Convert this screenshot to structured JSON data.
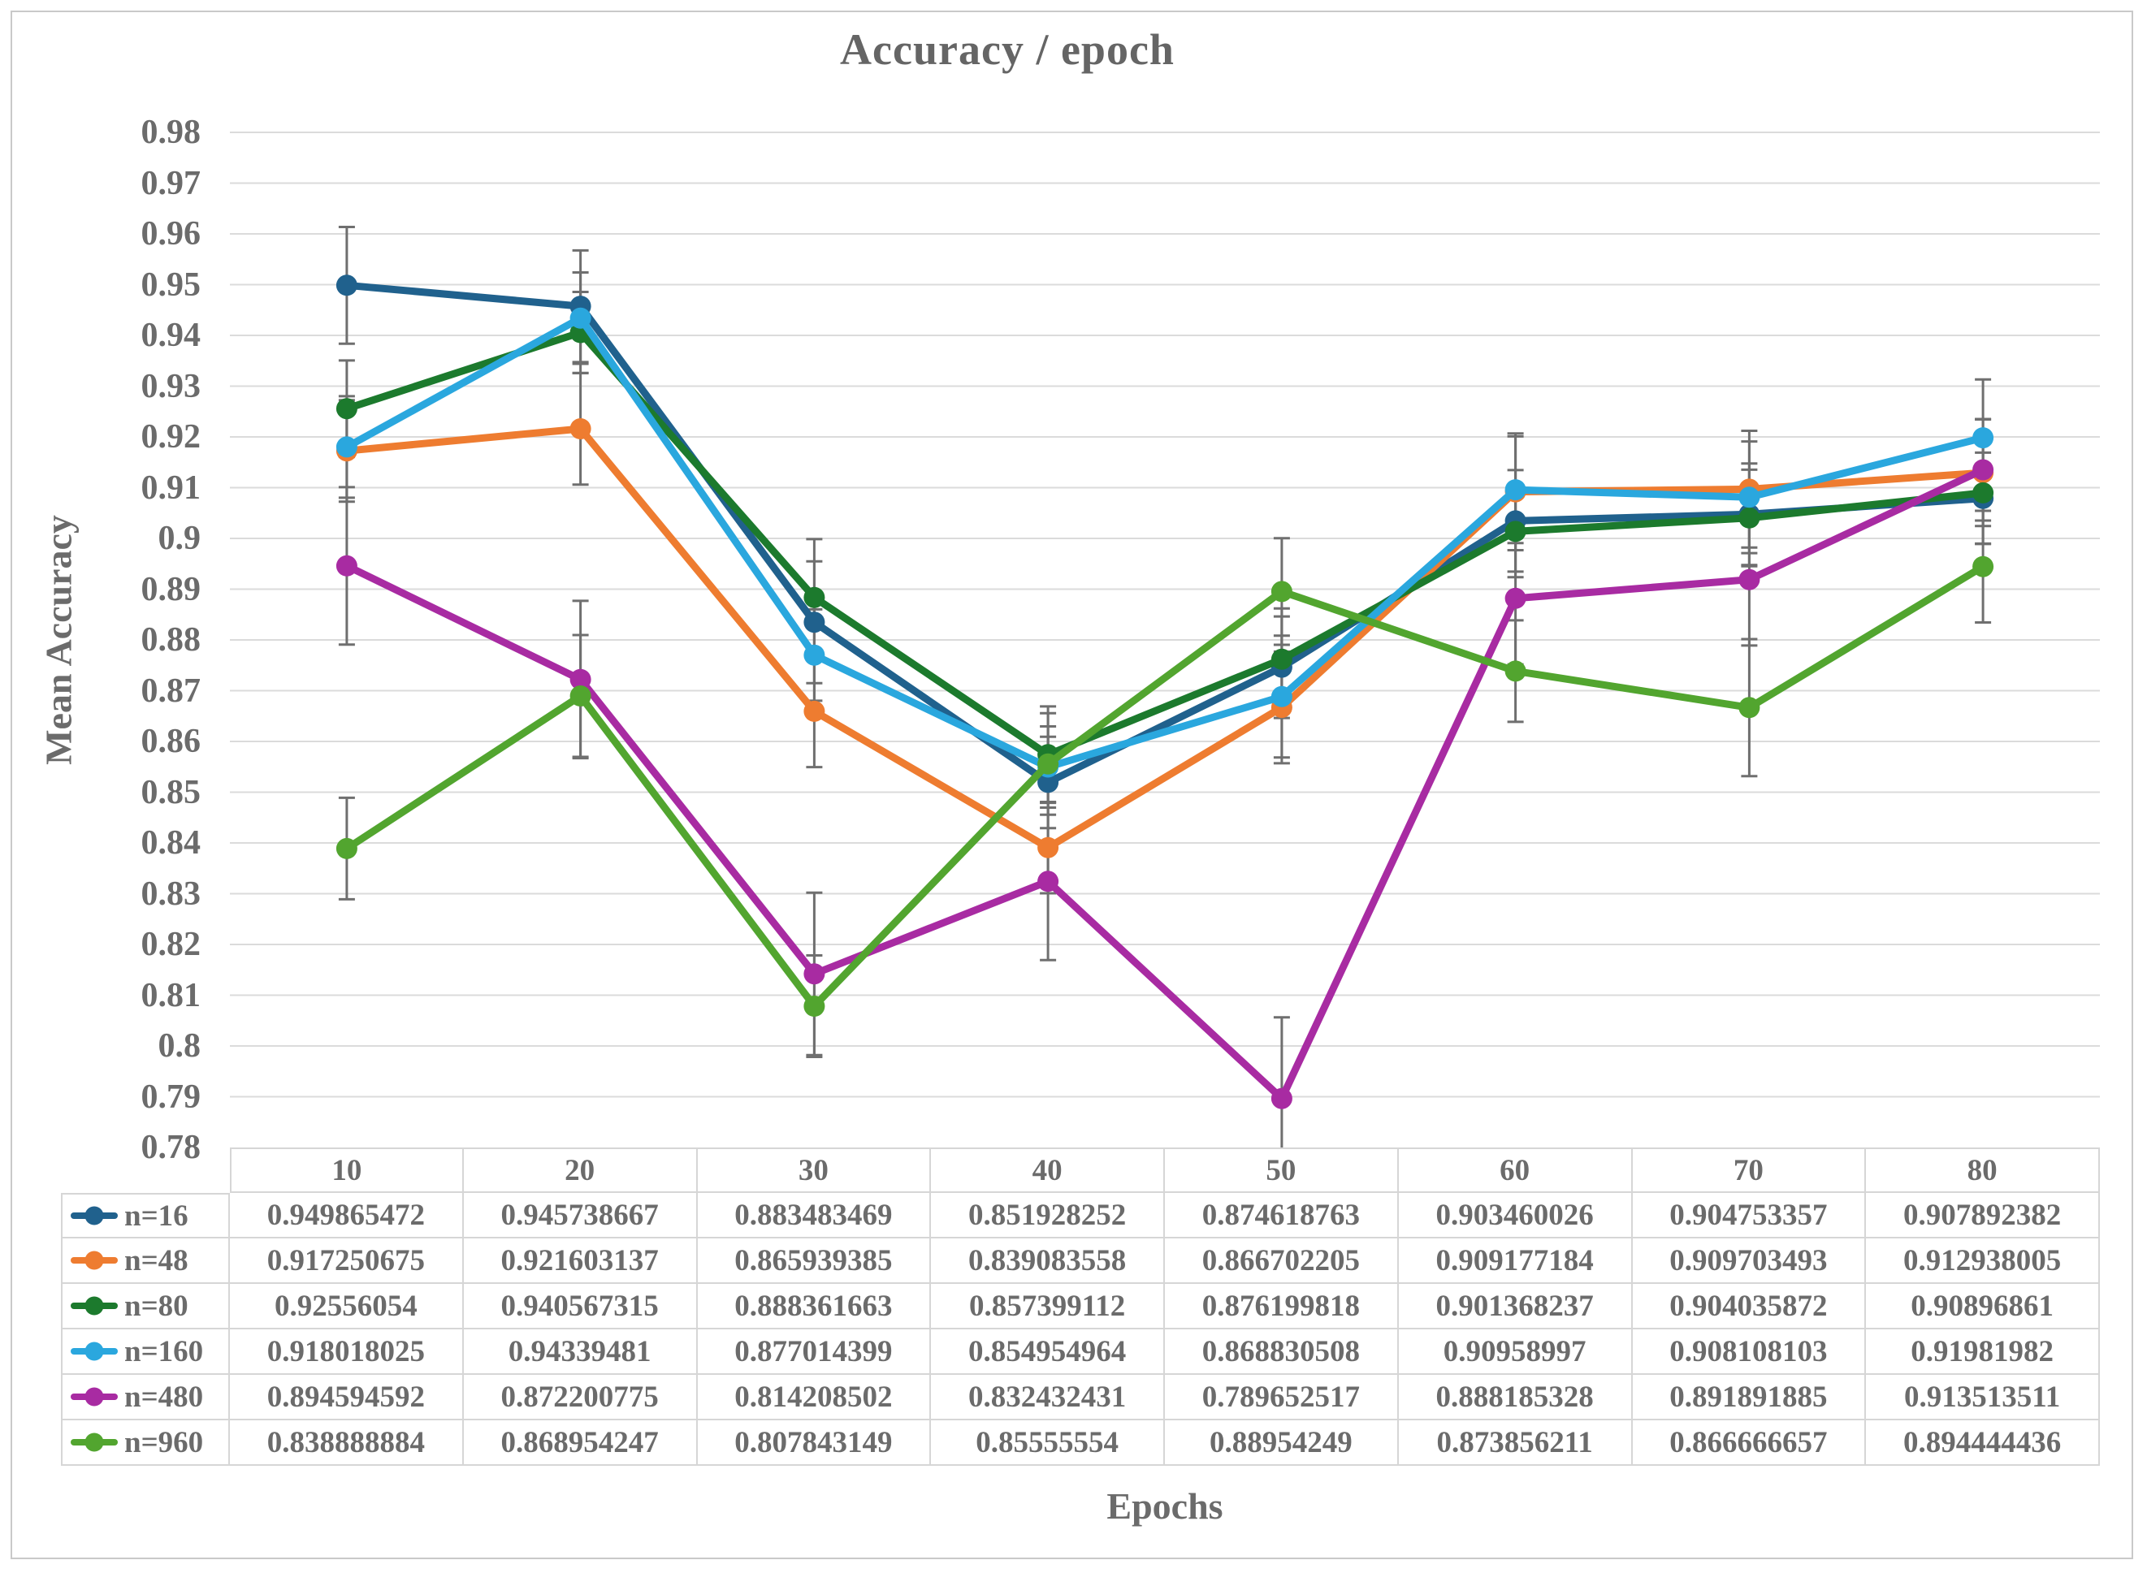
{
  "page": {
    "background": "#FFFFFF",
    "border_color": "#C9C9C9"
  },
  "chart_data": {
    "type": "line",
    "title": "Accuracy / epoch",
    "xlabel": "Epochs",
    "ylabel": "Mean Accuracy",
    "categories": [
      "10",
      "20",
      "30",
      "40",
      "50",
      "60",
      "70",
      "80"
    ],
    "y_axis": {
      "min": 0.78,
      "max": 0.98,
      "step": 0.01,
      "tick_labels": [
        "0.98",
        "0.97",
        "0.96",
        "0.95",
        "0.94",
        "0.93",
        "0.92",
        "0.91",
        "0.9",
        "0.89",
        "0.88",
        "0.87",
        "0.86",
        "0.85",
        "0.84",
        "0.83",
        "0.82",
        "0.81",
        "0.8",
        "0.79",
        "0.78"
      ]
    },
    "grid": true,
    "has_error_bars": true,
    "legend_position": "table-left",
    "colors": {
      "grid": "#DBDBDB",
      "error_bar": "#6F6F6F",
      "text": "#6B6B6B",
      "table_border": "#D6D6D6"
    },
    "series": [
      {
        "name": "n=16",
        "color": "#20618D",
        "values": [
          0.949865472,
          0.945738667,
          0.883483469,
          0.851928252,
          0.874618763,
          0.903460026,
          0.904753357,
          0.907892382
        ],
        "errors": [
          0.0115,
          0.011,
          0.012,
          0.009,
          0.01,
          0.01,
          0.01,
          0.009
        ]
      },
      {
        "name": "n=48",
        "color": "#EE7C30",
        "values": [
          0.917250675,
          0.921603137,
          0.865939385,
          0.839083558,
          0.866702205,
          0.909177184,
          0.909703493,
          0.912938005
        ],
        "errors": [
          0.01,
          0.011,
          0.011,
          0.009,
          0.011,
          0.0115,
          0.0115,
          0.0105
        ]
      },
      {
        "name": "n=80",
        "color": "#1C7A2D",
        "values": [
          0.92556054,
          0.940567315,
          0.888361663,
          0.857399112,
          0.876199818,
          0.901368237,
          0.904035872,
          0.90896861
        ],
        "errors": [
          0.0095,
          0.008,
          0.0115,
          0.0095,
          0.01,
          0.009,
          0.0095,
          0.01
        ]
      },
      {
        "name": "n=160",
        "color": "#2AA7DE",
        "values": [
          0.918018025,
          0.94339481,
          0.877014399,
          0.854954964,
          0.868830508,
          0.90958997,
          0.908108103,
          0.91981982
        ],
        "errors": [
          0.01,
          0.009,
          0.009,
          0.008,
          0.012,
          0.0105,
          0.011,
          0.0115
        ]
      },
      {
        "name": "n=480",
        "color": "#A82BA2",
        "values": [
          0.894594592,
          0.872200775,
          0.814208502,
          0.832432431,
          0.789652517,
          0.888185328,
          0.891891885,
          0.913513511
        ],
        "errors": [
          0.0155,
          0.0155,
          0.016,
          0.0155,
          0.016,
          0.013,
          0.013,
          0.01
        ]
      },
      {
        "name": "n=960",
        "color": "#52A52F",
        "values": [
          0.838888884,
          0.868954247,
          0.807843149,
          0.85555554,
          0.88954249,
          0.873856211,
          0.866666657,
          0.894444436
        ],
        "errors": [
          0.01,
          0.012,
          0.01,
          0.01,
          0.0105,
          0.01,
          0.0135,
          0.011
        ]
      }
    ]
  }
}
